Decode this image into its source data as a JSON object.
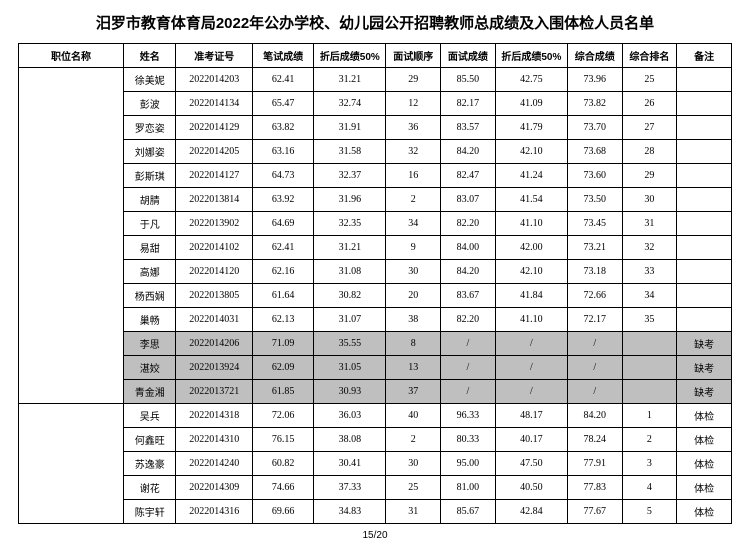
{
  "title": "汨罗市教育体育局2022年公办学校、幼儿园公开招聘教师总成绩及入围体检人员名单",
  "pager": "15/20",
  "columns": [
    "职位名称",
    "姓名",
    "准考证号",
    "笔试成绩",
    "折后成绩50%",
    "面试顺序",
    "面试成绩",
    "折后成绩50%",
    "综合成绩",
    "综合排名",
    "备注"
  ],
  "group1_rowspan": 14,
  "group2_rowspan": 5,
  "rows": [
    {
      "g": 1,
      "name": "徐美妮",
      "ticket": "2022014203",
      "w": "62.41",
      "wh": "31.21",
      "ord": "29",
      "is": "85.50",
      "ih": "42.75",
      "tot": "73.96",
      "rk": "25",
      "note": "",
      "absent": false
    },
    {
      "g": 1,
      "name": "彭波",
      "ticket": "2022014134",
      "w": "65.47",
      "wh": "32.74",
      "ord": "12",
      "is": "82.17",
      "ih": "41.09",
      "tot": "73.82",
      "rk": "26",
      "note": "",
      "absent": false
    },
    {
      "g": 1,
      "name": "罗恋姿",
      "ticket": "2022014129",
      "w": "63.82",
      "wh": "31.91",
      "ord": "36",
      "is": "83.57",
      "ih": "41.79",
      "tot": "73.70",
      "rk": "27",
      "note": "",
      "absent": false
    },
    {
      "g": 1,
      "name": "刘娜姿",
      "ticket": "2022014205",
      "w": "63.16",
      "wh": "31.58",
      "ord": "32",
      "is": "84.20",
      "ih": "42.10",
      "tot": "73.68",
      "rk": "28",
      "note": "",
      "absent": false
    },
    {
      "g": 1,
      "name": "彭斯琪",
      "ticket": "2022014127",
      "w": "64.73",
      "wh": "32.37",
      "ord": "16",
      "is": "82.47",
      "ih": "41.24",
      "tot": "73.60",
      "rk": "29",
      "note": "",
      "absent": false
    },
    {
      "g": 1,
      "name": "胡腈",
      "ticket": "2022013814",
      "w": "63.92",
      "wh": "31.96",
      "ord": "2",
      "is": "83.07",
      "ih": "41.54",
      "tot": "73.50",
      "rk": "30",
      "note": "",
      "absent": false
    },
    {
      "g": 1,
      "name": "于凡",
      "ticket": "2022013902",
      "w": "64.69",
      "wh": "32.35",
      "ord": "34",
      "is": "82.20",
      "ih": "41.10",
      "tot": "73.45",
      "rk": "31",
      "note": "",
      "absent": false
    },
    {
      "g": 1,
      "name": "易甜",
      "ticket": "2022014102",
      "w": "62.41",
      "wh": "31.21",
      "ord": "9",
      "is": "84.00",
      "ih": "42.00",
      "tot": "73.21",
      "rk": "32",
      "note": "",
      "absent": false
    },
    {
      "g": 1,
      "name": "高娜",
      "ticket": "2022014120",
      "w": "62.16",
      "wh": "31.08",
      "ord": "30",
      "is": "84.20",
      "ih": "42.10",
      "tot": "73.18",
      "rk": "33",
      "note": "",
      "absent": false
    },
    {
      "g": 1,
      "name": "杨西娴",
      "ticket": "2022013805",
      "w": "61.64",
      "wh": "30.82",
      "ord": "20",
      "is": "83.67",
      "ih": "41.84",
      "tot": "72.66",
      "rk": "34",
      "note": "",
      "absent": false
    },
    {
      "g": 1,
      "name": "巢畅",
      "ticket": "2022014031",
      "w": "62.13",
      "wh": "31.07",
      "ord": "38",
      "is": "82.20",
      "ih": "41.10",
      "tot": "72.17",
      "rk": "35",
      "note": "",
      "absent": false
    },
    {
      "g": 1,
      "name": "李思",
      "ticket": "2022014206",
      "w": "71.09",
      "wh": "35.55",
      "ord": "8",
      "is": "/",
      "ih": "/",
      "tot": "/",
      "rk": "",
      "note": "缺考",
      "absent": true
    },
    {
      "g": 1,
      "name": "湛姣",
      "ticket": "2022013924",
      "w": "62.09",
      "wh": "31.05",
      "ord": "13",
      "is": "/",
      "ih": "/",
      "tot": "/",
      "rk": "",
      "note": "缺考",
      "absent": true
    },
    {
      "g": 1,
      "name": "青金湘",
      "ticket": "2022013721",
      "w": "61.85",
      "wh": "30.93",
      "ord": "37",
      "is": "/",
      "ih": "/",
      "tot": "/",
      "rk": "",
      "note": "缺考",
      "absent": true
    },
    {
      "g": 2,
      "name": "吴兵",
      "ticket": "2022014318",
      "w": "72.06",
      "wh": "36.03",
      "ord": "40",
      "is": "96.33",
      "ih": "48.17",
      "tot": "84.20",
      "rk": "1",
      "note": "体检",
      "absent": false
    },
    {
      "g": 2,
      "name": "何鑫旺",
      "ticket": "2022014310",
      "w": "76.15",
      "wh": "38.08",
      "ord": "2",
      "is": "80.33",
      "ih": "40.17",
      "tot": "78.24",
      "rk": "2",
      "note": "体检",
      "absent": false
    },
    {
      "g": 2,
      "name": "苏逸豪",
      "ticket": "2022014240",
      "w": "60.82",
      "wh": "30.41",
      "ord": "30",
      "is": "95.00",
      "ih": "47.50",
      "tot": "77.91",
      "rk": "3",
      "note": "体检",
      "absent": false
    },
    {
      "g": 2,
      "name": "谢花",
      "ticket": "2022014309",
      "w": "74.66",
      "wh": "37.33",
      "ord": "25",
      "is": "81.00",
      "ih": "40.50",
      "tot": "77.83",
      "rk": "4",
      "note": "体检",
      "absent": false
    },
    {
      "g": 2,
      "name": "陈宇轩",
      "ticket": "2022014316",
      "w": "69.66",
      "wh": "34.83",
      "ord": "31",
      "is": "85.67",
      "ih": "42.84",
      "tot": "77.67",
      "rk": "5",
      "note": "体检",
      "absent": false
    }
  ]
}
